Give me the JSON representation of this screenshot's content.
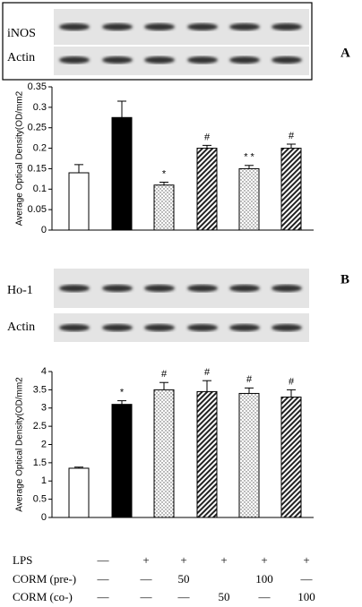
{
  "panels": [
    {
      "label": "A",
      "blot_labels": [
        "iNOS",
        "Actin"
      ]
    },
    {
      "label": "B",
      "blot_labels": [
        "Ho-1",
        "Actin"
      ]
    }
  ],
  "chart_data": [
    {
      "type": "bar",
      "y_label": "Average Optical Density(OD/mm2",
      "values": [
        0.14,
        0.275,
        0.11,
        0.2,
        0.15,
        0.2
      ],
      "errors": [
        0.02,
        0.04,
        0.007,
        0.007,
        0.008,
        0.01
      ],
      "annotations": [
        null,
        null,
        "*",
        "#",
        "* *",
        "#"
      ],
      "fills": [
        "white",
        "black",
        "dots",
        "hatch",
        "dots",
        "hatch"
      ],
      "ylim": [
        0,
        0.35
      ],
      "yticks": [
        0,
        0.05,
        0.1,
        0.15,
        0.2,
        0.25,
        0.3,
        0.35
      ]
    },
    {
      "type": "bar",
      "y_label": "Average Optical Density(OD/mm2",
      "values": [
        1.35,
        3.1,
        3.5,
        3.45,
        3.4,
        3.3
      ],
      "errors": [
        0.03,
        0.1,
        0.2,
        0.3,
        0.15,
        0.2
      ],
      "annotations": [
        null,
        "*",
        "#",
        "#",
        "#",
        "#"
      ],
      "fills": [
        "white",
        "black",
        "dots",
        "hatch",
        "dots",
        "hatch"
      ],
      "ylim": [
        0,
        4
      ],
      "yticks": [
        0,
        0.5,
        1,
        1.5,
        2,
        2.5,
        3,
        3.5,
        4
      ]
    }
  ],
  "table": {
    "row_labels": [
      "LPS",
      "CORM (pre-)",
      "CORM (co-)"
    ],
    "rows": [
      [
        "—",
        "+",
        "+",
        "+",
        "+",
        "+"
      ],
      [
        "—",
        "—",
        "50",
        null,
        "100",
        "—"
      ],
      [
        "—",
        "—",
        "—",
        "50",
        "—",
        "100"
      ]
    ]
  }
}
